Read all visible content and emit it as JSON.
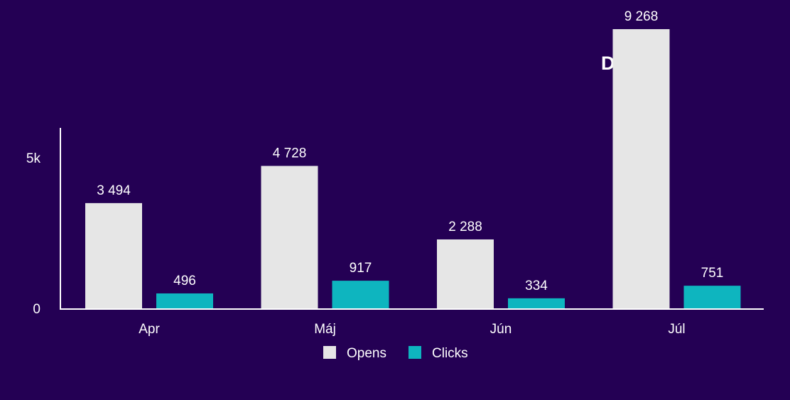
{
  "brand": "DUOS",
  "chart_data": {
    "type": "bar",
    "categories": [
      "Apr",
      "Máj",
      "Jún",
      "Júl"
    ],
    "series": [
      {
        "name": "Opens",
        "values": [
          3494,
          4728,
          2288,
          9268
        ],
        "labels": [
          "3 494",
          "4 728",
          "2 288",
          "9 268"
        ],
        "color": "#e6e6e6"
      },
      {
        "name": "Clicks",
        "values": [
          496,
          917,
          334,
          751
        ],
        "labels": [
          "496",
          "917",
          "334",
          "751"
        ],
        "color": "#0eb5bf"
      }
    ],
    "y_ticks": [
      {
        "value": 0,
        "label": "0"
      },
      {
        "value": 5000,
        "label": "5k"
      }
    ],
    "ylim": [
      0,
      10000
    ],
    "grid": false,
    "legend": "bottom-center"
  }
}
